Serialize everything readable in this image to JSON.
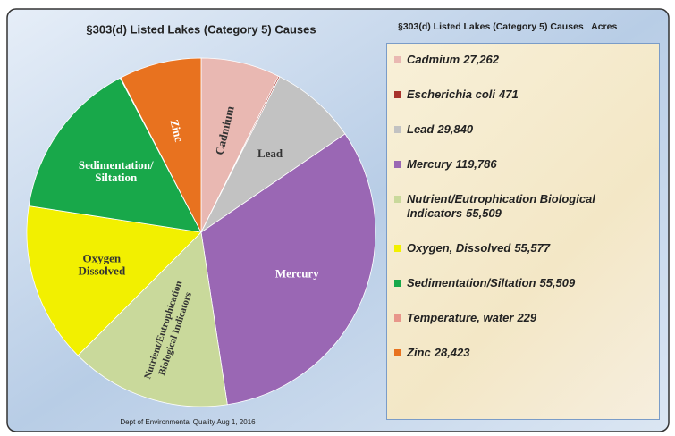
{
  "chart_data": {
    "type": "pie",
    "title": "§303(d) Listed Lakes (Category 5) Causes",
    "legend_title": "§303(d) Listed Lakes (Category 5) Causes   Acres",
    "footnote": "Dept of Environmental Quality Aug 1, 2016",
    "categories": [
      "Cadmium",
      "Escherichia coli",
      "Lead",
      "Mercury",
      "Nutrient/Eutrophication Biological Indicators",
      "Oxygen, Dissolved",
      "Sedimentation/Siltation",
      "Temperature, water",
      "Zinc"
    ],
    "values": [
      27262,
      471,
      29840,
      119786,
      55509,
      55577,
      55509,
      229,
      28423
    ],
    "value_labels": [
      "27,262",
      "471",
      "29,840",
      "119,786",
      "55,509",
      "55,577",
      "55,509",
      "229",
      "28,423"
    ],
    "colors": [
      "#e9b8b2",
      "#a8322b",
      "#c2c2c2",
      "#9a67b4",
      "#c9d99b",
      "#f2f000",
      "#18a84a",
      "#e8968a",
      "#e8721f"
    ],
    "slice_labels": [
      [
        "Cadmium"
      ],
      null,
      [
        "Lead"
      ],
      [
        "Mercury"
      ],
      [
        "Nutrient/Eutrophication",
        "Biological Indicators"
      ],
      [
        "Oxygen",
        "Dissolved"
      ],
      [
        "Sedimentation/",
        "Siltation"
      ],
      null,
      [
        "Zinc"
      ]
    ]
  }
}
